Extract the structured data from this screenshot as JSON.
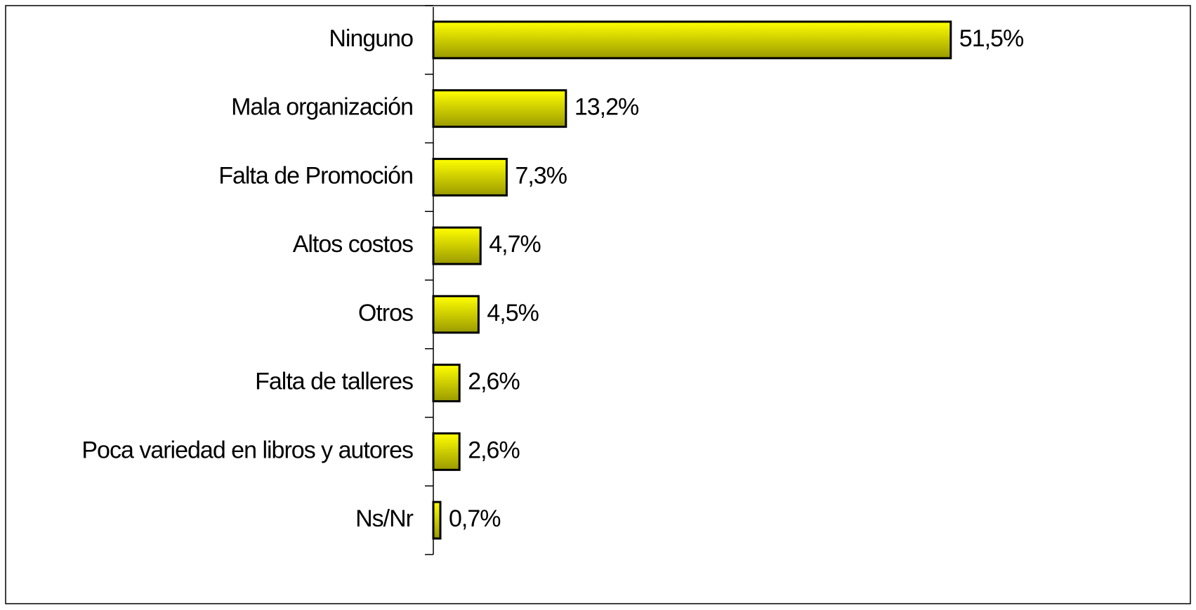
{
  "chart_data": {
    "type": "bar",
    "orientation": "horizontal",
    "categories": [
      "Ninguno",
      "Mala organización",
      "Falta de Promoción",
      "Altos costos",
      "Otros",
      "Falta de talleres",
      "Poca variedad en libros  y autores",
      "Ns/Nr"
    ],
    "values": [
      51.5,
      13.2,
      7.3,
      4.7,
      4.5,
      2.6,
      2.6,
      0.7
    ],
    "value_labels": [
      "51,5%",
      "13,2%",
      "7,3%",
      "4,7%",
      "4,5%",
      "2,6%",
      "2,6%",
      "0,7%"
    ],
    "color": "#ffff00",
    "xlim": [
      0,
      75
    ]
  }
}
